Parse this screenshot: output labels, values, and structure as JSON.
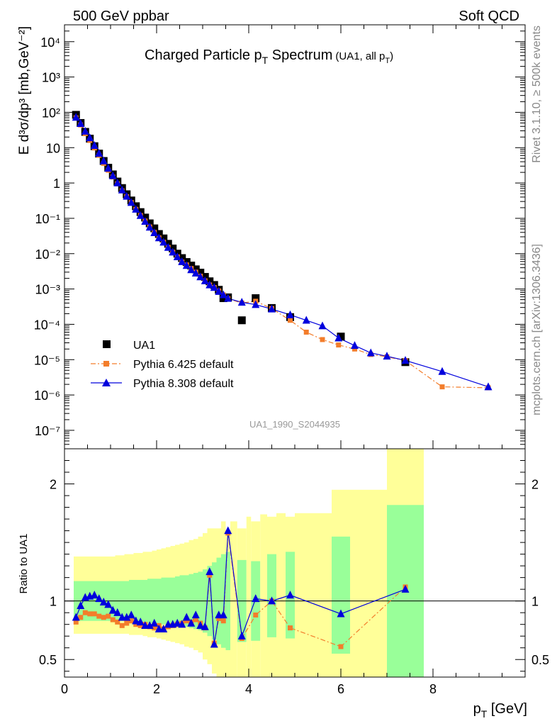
{
  "header": {
    "left": "500 GeV ppbar",
    "right": "Soft QCD"
  },
  "side_text": {
    "top": "Rivet 3.1.10, ≥ 500k events",
    "bottom": "mcplots.cern.ch [arXiv:1306.3436]"
  },
  "watermark": "UA1_1990_S2044935",
  "title": {
    "main": "Charged Particle p",
    "main_sub": "T",
    "main_tail": " Spectrum",
    "note": "(UA1, all p",
    "note_sub": "T",
    "note_tail": ")"
  },
  "colors": {
    "data": "#000000",
    "pythia6": "#f37d2b",
    "pythia8": "#0000dd",
    "band_inner": "#99ff99",
    "band_outer": "#ffff99"
  },
  "chart_data": [
    {
      "type": "scatter",
      "name": "spectrum",
      "yscale": "log",
      "ylabel": "E d³σ/dp³ [mb,GeV⁻²]",
      "xlim": [
        0,
        10
      ],
      "ylim": [
        3e-08,
        30000.0
      ],
      "y_ticks": [
        "10⁴",
        "10³",
        "10²",
        "10",
        "1",
        "10⁻¹",
        "10⁻²",
        "10⁻³",
        "10⁻⁴",
        "10⁻⁵",
        "10⁻⁶",
        "10⁻⁷"
      ],
      "legend_position": "bottom-left",
      "series": [
        {
          "name": "UA1",
          "marker": "square",
          "x": [
            0.25,
            0.35,
            0.45,
            0.55,
            0.65,
            0.75,
            0.85,
            0.95,
            1.05,
            1.15,
            1.25,
            1.35,
            1.45,
            1.55,
            1.65,
            1.75,
            1.85,
            1.95,
            2.05,
            2.15,
            2.25,
            2.35,
            2.45,
            2.55,
            2.65,
            2.75,
            2.85,
            2.95,
            3.05,
            3.15,
            3.25,
            3.35,
            3.45,
            3.55,
            3.85,
            4.15,
            4.5,
            4.9,
            6.0,
            7.4
          ],
          "values": [
            85,
            50,
            28,
            18,
            11,
            6.8,
            4.2,
            2.7,
            1.75,
            1.1,
            0.72,
            0.48,
            0.32,
            0.22,
            0.15,
            0.105,
            0.072,
            0.052,
            0.036,
            0.027,
            0.019,
            0.014,
            0.01,
            0.0075,
            0.0058,
            0.0046,
            0.0036,
            0.0029,
            0.0022,
            0.00165,
            0.0013,
            0.00095,
            0.00055,
            0.00058,
            0.00013,
            0.00055,
            0.00029,
            0.00016,
            4.5e-05,
            8.5e-06
          ]
        },
        {
          "name": "Pythia 6.425 default",
          "marker": "square-small",
          "line": "dash-dot",
          "x": [
            0.25,
            0.35,
            0.45,
            0.55,
            0.65,
            0.75,
            0.85,
            0.95,
            1.05,
            1.15,
            1.25,
            1.35,
            1.45,
            1.55,
            1.65,
            1.75,
            1.85,
            1.95,
            2.05,
            2.15,
            2.25,
            2.35,
            2.45,
            2.55,
            2.65,
            2.75,
            2.85,
            2.95,
            3.05,
            3.15,
            3.25,
            3.35,
            3.45,
            3.55,
            3.85,
            4.15,
            4.5,
            4.9,
            5.25,
            5.6,
            5.95,
            6.3,
            6.65,
            7.0,
            7.4,
            8.2,
            9.2
          ],
          "values": [
            70,
            44,
            25,
            16,
            9.8,
            6.1,
            3.6,
            2.3,
            1.48,
            0.95,
            0.6,
            0.41,
            0.28,
            0.18,
            0.12,
            0.084,
            0.057,
            0.04,
            0.028,
            0.021,
            0.015,
            0.011,
            0.0081,
            0.0058,
            0.0048,
            0.0038,
            0.003,
            0.0023,
            0.0017,
            0.0013,
            0.0011,
            0.00088,
            0.00068,
            0.00053,
            0.0004,
            0.00045,
            0.00028,
            0.00013,
            6e-05,
            3.7e-05,
            2.6e-05,
            2e-05,
            1.4e-05,
            1.2e-05,
            9.4e-06,
            1.7e-06,
            1.6e-06
          ]
        },
        {
          "name": "Pythia 8.308 default",
          "marker": "triangle",
          "line": "solid",
          "x": [
            0.25,
            0.35,
            0.45,
            0.55,
            0.65,
            0.75,
            0.85,
            0.95,
            1.05,
            1.15,
            1.25,
            1.35,
            1.45,
            1.55,
            1.65,
            1.75,
            1.85,
            1.95,
            2.05,
            2.15,
            2.25,
            2.35,
            2.45,
            2.55,
            2.65,
            2.75,
            2.85,
            2.95,
            3.05,
            3.15,
            3.25,
            3.35,
            3.45,
            3.55,
            3.85,
            4.15,
            4.5,
            4.9,
            5.25,
            5.6,
            5.95,
            6.3,
            6.65,
            7.0,
            7.4,
            8.2,
            9.2
          ],
          "values": [
            72,
            48,
            29,
            19,
            11.5,
            6.9,
            4.2,
            2.6,
            1.6,
            1.0,
            0.63,
            0.42,
            0.28,
            0.18,
            0.12,
            0.082,
            0.056,
            0.039,
            0.028,
            0.021,
            0.015,
            0.011,
            0.0081,
            0.0059,
            0.0046,
            0.0035,
            0.0028,
            0.0022,
            0.0017,
            0.0013,
            0.0011,
            0.00085,
            0.00068,
            0.00054,
            0.00042,
            0.00036,
            0.00027,
            0.000185,
            0.00013,
            9e-05,
            4.1e-05,
            2.5e-05,
            1.55e-05,
            1.25e-05,
            9.5e-06,
            4.6e-06,
            1.7e-06
          ]
        }
      ]
    },
    {
      "type": "scatter",
      "name": "ratio",
      "ylabel": "Ratio to UA1",
      "xlabel": "p_T [GeV]",
      "xlim": [
        0,
        10
      ],
      "ylim": [
        0.35,
        2.3
      ],
      "x_ticks": [
        0,
        2,
        4,
        6,
        8
      ],
      "y_ticks": [
        0.5,
        1,
        2
      ],
      "reference_line": 1,
      "bands": {
        "x_edges": [
          0.2,
          0.3,
          0.4,
          0.5,
          0.6,
          0.7,
          0.8,
          0.9,
          1.0,
          1.1,
          1.2,
          1.3,
          1.4,
          1.5,
          1.6,
          1.7,
          1.8,
          1.9,
          2.0,
          2.1,
          2.2,
          2.3,
          2.4,
          2.5,
          2.6,
          2.7,
          2.8,
          2.9,
          3.0,
          3.1,
          3.2,
          3.3,
          3.4,
          3.5,
          3.6,
          3.75,
          3.95,
          4.05,
          4.25,
          4.4,
          4.6,
          4.8,
          5.0,
          5.8,
          6.2,
          7.0,
          7.8
        ],
        "green_low": [
          0.83,
          0.83,
          0.83,
          0.83,
          0.83,
          0.83,
          0.83,
          0.83,
          0.83,
          0.83,
          0.83,
          0.83,
          0.82,
          0.82,
          0.82,
          0.82,
          0.81,
          0.81,
          0.81,
          0.8,
          0.8,
          0.8,
          0.79,
          0.78,
          0.78,
          0.77,
          0.76,
          0.75,
          0.73,
          0.7,
          0.67,
          0.63,
          0.6,
          0.58,
          null,
          0.65,
          null,
          0.66,
          null,
          0.69,
          null,
          0.68,
          null,
          0.55,
          null,
          0.35
        ],
        "green_high": [
          1.17,
          1.17,
          1.17,
          1.17,
          1.17,
          1.17,
          1.17,
          1.17,
          1.17,
          1.17,
          1.17,
          1.17,
          1.18,
          1.18,
          1.18,
          1.18,
          1.19,
          1.19,
          1.19,
          1.2,
          1.2,
          1.2,
          1.21,
          1.22,
          1.22,
          1.23,
          1.24,
          1.25,
          1.27,
          1.3,
          1.33,
          1.37,
          1.4,
          1.42,
          null,
          1.35,
          null,
          1.34,
          null,
          1.4,
          null,
          1.42,
          null,
          1.55,
          null,
          1.82
        ],
        "yellow_low": [
          0.72,
          0.72,
          0.72,
          0.72,
          0.72,
          0.72,
          0.72,
          0.72,
          0.72,
          0.72,
          0.72,
          0.72,
          0.71,
          0.71,
          0.71,
          0.7,
          0.69,
          0.69,
          0.68,
          0.67,
          0.66,
          0.65,
          0.64,
          0.63,
          0.61,
          0.6,
          0.58,
          0.56,
          0.5,
          0.46,
          0.38,
          0.35,
          0.35,
          0.35,
          0.35,
          0.35,
          0.35,
          0.35,
          0.35,
          0.35,
          0.35,
          0.35,
          0.35,
          0.35,
          0.35,
          0.35
        ],
        "yellow_high": [
          1.38,
          1.38,
          1.38,
          1.38,
          1.38,
          1.38,
          1.38,
          1.38,
          1.38,
          1.39,
          1.39,
          1.4,
          1.4,
          1.41,
          1.41,
          1.42,
          1.42,
          1.43,
          1.44,
          1.45,
          1.46,
          1.47,
          1.48,
          1.49,
          1.5,
          1.52,
          1.53,
          1.55,
          1.58,
          1.62,
          1.62,
          1.62,
          1.68,
          1.6,
          1.68,
          1.62,
          1.72,
          1.68,
          1.74,
          1.72,
          1.75,
          1.72,
          1.75,
          1.95,
          1.95,
          2.3
        ]
      },
      "series": [
        {
          "name": "Pythia 6.425 default",
          "x": [
            0.25,
            0.35,
            0.45,
            0.55,
            0.65,
            0.75,
            0.85,
            0.95,
            1.05,
            1.15,
            1.25,
            1.35,
            1.45,
            1.55,
            1.65,
            1.75,
            1.85,
            1.95,
            2.05,
            2.15,
            2.25,
            2.35,
            2.45,
            2.55,
            2.65,
            2.75,
            2.85,
            2.95,
            3.05,
            3.15,
            3.25,
            3.35,
            3.45,
            3.55,
            3.85,
            4.15,
            4.5,
            4.9,
            6.0,
            7.4
          ],
          "values": [
            0.82,
            0.86,
            0.9,
            0.89,
            0.89,
            0.87,
            0.86,
            0.87,
            0.84,
            0.82,
            0.79,
            0.81,
            0.83,
            0.8,
            0.79,
            0.8,
            0.78,
            0.77,
            0.79,
            0.76,
            0.78,
            0.79,
            0.8,
            0.81,
            0.83,
            0.82,
            0.84,
            0.81,
            0.77,
            1.22,
            0.64,
            0.85,
            0.83,
            1.58,
            0.68,
            0.88,
            1.0,
            0.77,
            0.61,
            1.12
          ]
        },
        {
          "name": "Pythia 8.308 default",
          "x": [
            0.25,
            0.35,
            0.45,
            0.55,
            0.65,
            0.75,
            0.85,
            0.95,
            1.05,
            1.15,
            1.25,
            1.35,
            1.45,
            1.55,
            1.65,
            1.75,
            1.85,
            1.95,
            2.05,
            2.15,
            2.25,
            2.35,
            2.45,
            2.55,
            2.65,
            2.75,
            2.85,
            2.95,
            3.05,
            3.15,
            3.25,
            3.35,
            3.45,
            3.55,
            3.85,
            4.15,
            4.5,
            4.9,
            6.0,
            7.4
          ],
          "values": [
            0.86,
            0.96,
            1.03,
            1.04,
            1.05,
            1.02,
            0.99,
            0.97,
            0.92,
            0.9,
            0.86,
            0.86,
            0.88,
            0.83,
            0.82,
            0.79,
            0.79,
            0.81,
            0.76,
            0.76,
            0.8,
            0.8,
            0.81,
            0.8,
            0.86,
            0.81,
            0.88,
            0.79,
            0.78,
            1.25,
            0.63,
            0.88,
            0.88,
            1.6,
            0.7,
            1.02,
            1.0,
            1.05,
            0.89,
            1.1
          ]
        }
      ]
    }
  ]
}
